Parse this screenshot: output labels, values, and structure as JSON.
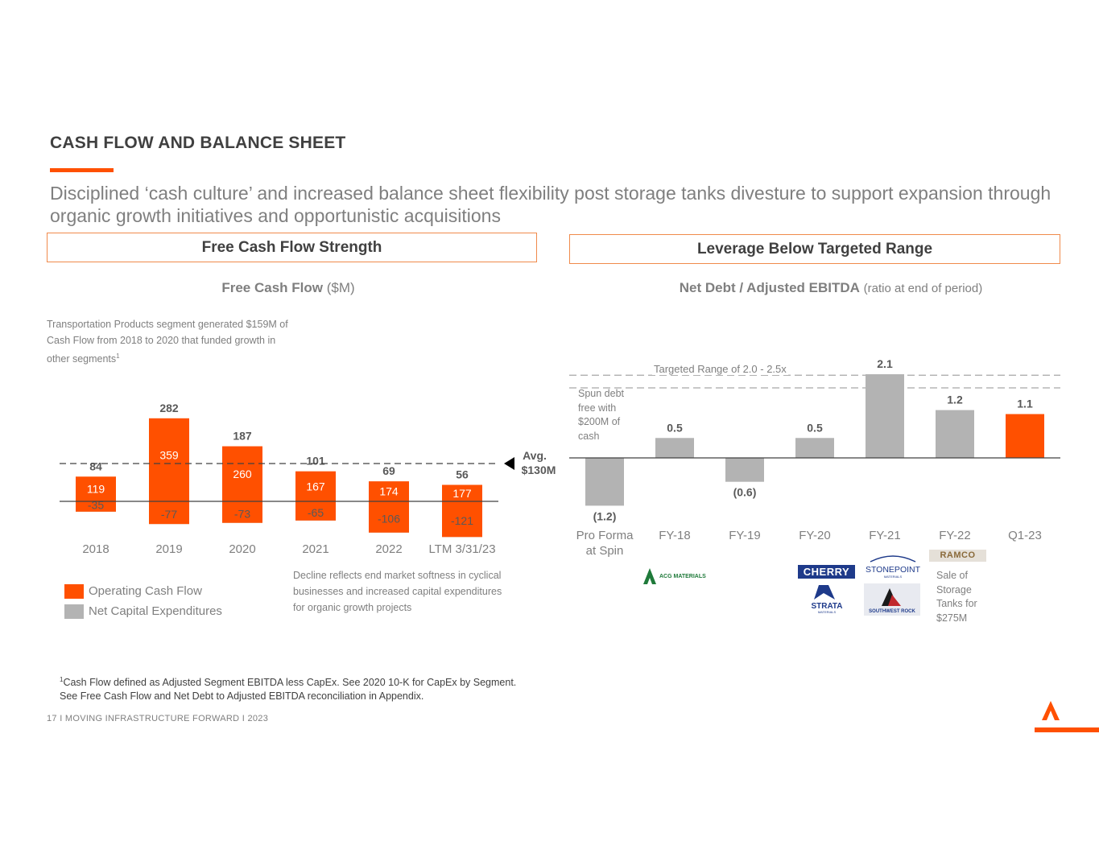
{
  "title": "CASH FLOW AND BALANCE SHEET",
  "subtitle": "Disciplined ‘cash culture’ and increased balance sheet flexibility post storage tanks divesture to support expansion through organic growth initiatives and opportunistic acquisitions",
  "left_box": "Free Cash Flow Strength",
  "right_box": "Leverage Below Targeted Range",
  "fcf_title_bold": "Free Cash Flow",
  "fcf_title_unit": "($M)",
  "fcf_note": "Transportation Products segment generated $159M of Cash Flow from 2018 to 2020 that funded growth in other segments",
  "fcf_note_sup": "1",
  "avg_label_1": "Avg.",
  "avg_label_2": "$130M",
  "legend": {
    "ocf": "Operating Cash Flow",
    "capex": "Net Capital Expenditures"
  },
  "decline_note": "Decline reflects end market softness in cyclical businesses  and increased capital expenditures for organic growth projects",
  "lev_title_bold": "Net Debt / Adjusted EBITDA",
  "lev_title_sub": "(ratio at end of period)",
  "target_label": "Targeted Range of 2.0 - 2.5x",
  "spun_note": "Spun debt free with $200M of cash",
  "sale_note": "Sale of Storage Tanks for $275M",
  "logos": {
    "acg": "ACG MATERIALS",
    "cherry": "CHERRY",
    "stonepoint": "STONEPOINT",
    "stonepoint_sub": "MATERIALS",
    "strata": "STRATA",
    "strata_sub": "MATERIALS",
    "swr": "SOUTHWEST ROCK",
    "ramco": "RAMCO"
  },
  "footnote_sup": "1",
  "footnote_line1": "Cash Flow defined as Adjusted Segment EBITDA less CapEx. See 2020 10-K for CapEx by Segment.",
  "footnote_line2": "See Free Cash Flow and Net Debt to Adjusted EBITDA reconciliation in Appendix.",
  "footer": "17  I   MOVING INFRASTRUCTURE FORWARD   I   2023",
  "colors": {
    "orange": "#FF5000",
    "gray": "#B3B3B3",
    "text": "#7F7F7F",
    "dark": "#404040"
  },
  "chart_data": [
    {
      "type": "bar",
      "title": "Free Cash Flow ($M)",
      "categories": [
        "2018",
        "2019",
        "2020",
        "2021",
        "2022",
        "LTM 3/31/23"
      ],
      "series": [
        {
          "name": "Operating Cash Flow",
          "values": [
            119,
            359,
            260,
            167,
            174,
            177
          ]
        },
        {
          "name": "Net Capital Expenditures",
          "values": [
            -35,
            -77,
            -73,
            -65,
            -106,
            -121
          ]
        }
      ],
      "totals": [
        84,
        282,
        187,
        101,
        69,
        56
      ],
      "average_line": 130
    },
    {
      "type": "bar",
      "title": "Net Debt / Adjusted EBITDA",
      "categories": [
        "Pro Forma at Spin",
        "FY-18",
        "FY-19",
        "FY-20",
        "FY-21",
        "FY-22",
        "Q1-23"
      ],
      "values": [
        -1.2,
        0.5,
        -0.6,
        0.5,
        2.1,
        1.2,
        1.1
      ],
      "labels": [
        "(1.2)",
        "0.5",
        "(0.6)",
        "0.5",
        "2.1",
        "1.2",
        "1.1"
      ],
      "highlight_index": 6,
      "target_range": [
        2.0,
        2.5
      ]
    }
  ]
}
